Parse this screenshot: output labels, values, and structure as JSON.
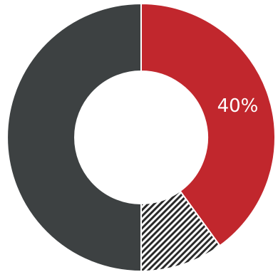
{
  "chart_data": {
    "type": "pie",
    "variant": "donut",
    "slices": [
      {
        "value": 40,
        "color": "#c1272d",
        "pattern": "none",
        "label": "40%"
      },
      {
        "value": 10,
        "color": "#ffffff",
        "pattern": "diagonal-hatch",
        "hatch_color": "#2a2a2a",
        "label": ""
      },
      {
        "value": 50,
        "color": "#3d4142",
        "pattern": "none",
        "label": ""
      }
    ],
    "start_angle_deg": 0,
    "direction": "clockwise",
    "legend": "none",
    "colors": {
      "separator": "#ffffff",
      "background": "#ffffff"
    }
  }
}
